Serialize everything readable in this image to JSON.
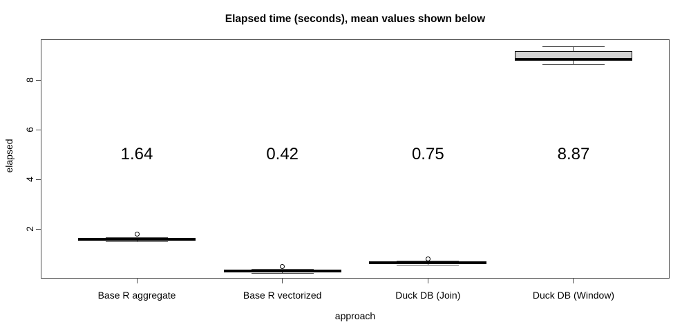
{
  "chart_data": {
    "type": "boxplot",
    "title": "Elapsed time (seconds), mean values shown below",
    "xlabel": "approach",
    "ylabel": "elapsed",
    "ylim": [
      0,
      9.64
    ],
    "yticks": [
      2,
      4,
      6,
      8
    ],
    "grid": false,
    "legend": "none",
    "categories": [
      "Base R aggregate",
      "Base R vectorized",
      "Duck DB (Join)",
      "Duck DB (Window)"
    ],
    "means": [
      "1.64",
      "0.42",
      "0.75",
      "8.87"
    ],
    "mean_label_y_value": 5,
    "series": [
      {
        "name": "Base R aggregate",
        "median": 1.58,
        "q1": 1.53,
        "q3": 1.64,
        "whisker_low": 1.5,
        "whisker_high": 1.66,
        "outliers": [
          1.78
        ]
      },
      {
        "name": "Base R vectorized",
        "median": 0.31,
        "q1": 0.25,
        "q3": 0.36,
        "whisker_low": 0.23,
        "whisker_high": 0.38,
        "outliers": [
          0.49
        ]
      },
      {
        "name": "Duck DB (Join)",
        "median": 0.64,
        "q1": 0.58,
        "q3": 0.69,
        "whisker_low": 0.56,
        "whisker_high": 0.72,
        "outliers": [
          0.78
        ]
      },
      {
        "name": "Duck DB (Window)",
        "median": 8.85,
        "q1": 8.78,
        "q3": 9.17,
        "whisker_low": 8.63,
        "whisker_high": 9.36,
        "outliers": []
      }
    ]
  },
  "colors": {
    "background": "#ffffff",
    "box_fill": "#d3d3d3",
    "box_border": "#000000",
    "axis": "#4a4a4a",
    "text": "#000000"
  }
}
